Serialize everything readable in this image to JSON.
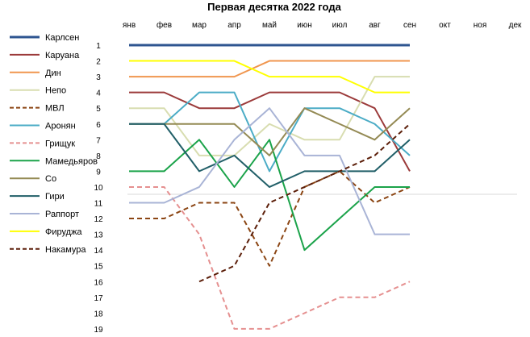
{
  "chart_data": {
    "type": "line",
    "title": "Первая десятка 2022 года",
    "categories": [
      "янв",
      "фев",
      "мар",
      "апр",
      "май",
      "июн",
      "июл",
      "авг",
      "сен",
      "окт",
      "ноя",
      "дек"
    ],
    "y_ticks": [
      "1",
      "2",
      "3",
      "4",
      "5",
      "6",
      "7",
      "8",
      "9",
      "10",
      "11",
      "12",
      "13",
      "14",
      "15",
      "16",
      "17",
      "18",
      "19"
    ],
    "y_axis": "reversed rank 1-19",
    "grid": false,
    "legend_position": "left",
    "series": [
      {
        "name": "Карлсен",
        "color": "#2E5590",
        "dash": false,
        "width": 3,
        "values": [
          1,
          1,
          1,
          1,
          1,
          1,
          1,
          1,
          1,
          null,
          null,
          null
        ]
      },
      {
        "name": "Каруана",
        "color": "#9B3A3A",
        "dash": false,
        "width": 2,
        "values": [
          4,
          4,
          5,
          5,
          4,
          4,
          4,
          5,
          9,
          null,
          null,
          null
        ]
      },
      {
        "name": "Дин",
        "color": "#F0964F",
        "dash": false,
        "width": 2,
        "values": [
          3,
          3,
          3,
          3,
          2,
          2,
          2,
          2,
          2,
          null,
          null,
          null
        ]
      },
      {
        "name": "Непо",
        "color": "#D8DDB0",
        "dash": false,
        "width": 2,
        "values": [
          5,
          5,
          8,
          8,
          6,
          7,
          7,
          3,
          3,
          null,
          null,
          null
        ]
      },
      {
        "name": "МВЛ",
        "color": "#8B4513",
        "dash": true,
        "width": 2,
        "values": [
          12,
          12,
          11,
          11,
          15,
          10,
          9,
          11,
          10,
          null,
          null,
          null
        ]
      },
      {
        "name": "Аронян",
        "color": "#4BACC6",
        "dash": false,
        "width": 2,
        "values": [
          6,
          6,
          4,
          4,
          9,
          5,
          5,
          6,
          8,
          null,
          null,
          null
        ]
      },
      {
        "name": "Грищук",
        "color": "#E59090",
        "dash": true,
        "width": 2,
        "values": [
          10,
          10,
          13,
          19,
          19,
          18,
          17,
          17,
          16,
          null,
          null,
          null
        ]
      },
      {
        "name": "Мамедьяров",
        "color": "#1BA34A",
        "dash": false,
        "width": 2,
        "values": [
          9,
          9,
          7,
          10,
          7,
          14,
          12,
          10,
          10,
          null,
          null,
          null
        ]
      },
      {
        "name": "Со",
        "color": "#948A54",
        "dash": false,
        "width": 2,
        "values": [
          6,
          6,
          6,
          6,
          8,
          5,
          6,
          7,
          5,
          null,
          null,
          null
        ]
      },
      {
        "name": "Гири",
        "color": "#215F68",
        "dash": false,
        "width": 2,
        "values": [
          6,
          6,
          9,
          8,
          10,
          9,
          9,
          9,
          7,
          null,
          null,
          null
        ]
      },
      {
        "name": "Раппорт",
        "color": "#A9B4D6",
        "dash": false,
        "width": 2,
        "values": [
          11,
          11,
          10,
          7,
          5,
          8,
          8,
          13,
          13,
          null,
          null,
          null
        ]
      },
      {
        "name": "Фируджа",
        "color": "#FFFF00",
        "dash": false,
        "width": 2,
        "values": [
          2,
          2,
          2,
          2,
          3,
          3,
          3,
          4,
          4,
          null,
          null,
          null
        ]
      },
      {
        "name": "Накамура",
        "color": "#5C1F0A",
        "dash": true,
        "width": 2,
        "values": [
          null,
          null,
          16,
          15,
          11,
          10,
          9,
          8,
          6,
          null,
          null,
          null
        ]
      }
    ]
  }
}
